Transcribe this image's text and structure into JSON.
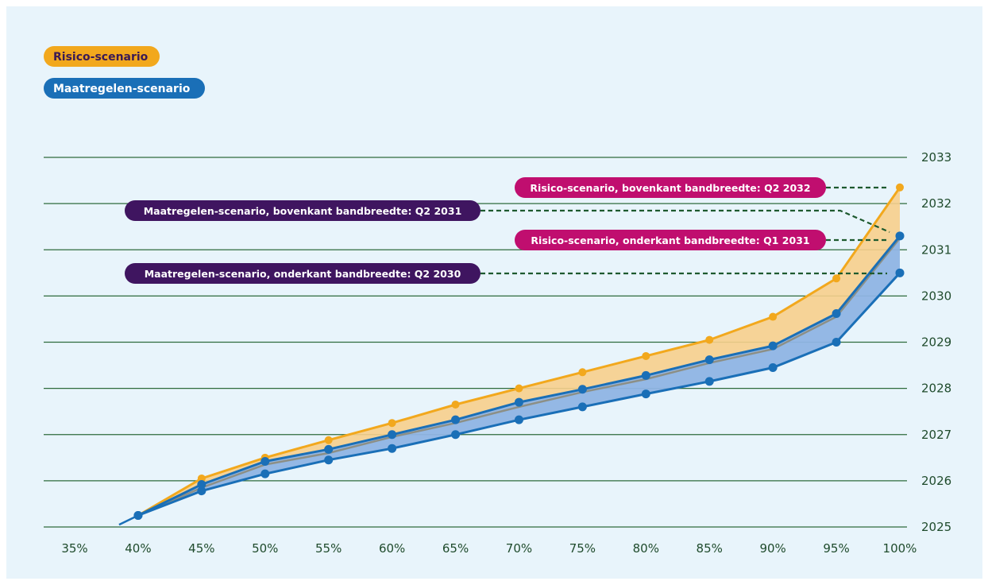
{
  "legend": {
    "risk_label": "Risico-scenario",
    "measures_label": "Maatregelen-scenario"
  },
  "colors": {
    "panel_background": "#e8f4fb",
    "risk_line": "#f2a81d",
    "risk_fill": "#f7cf8c",
    "measures_line": "#1a6fb7",
    "measures_fill": "#8fb4e4",
    "gridline": "#2e6b3c",
    "axis_text": "#1f4b2c",
    "annotation_risk_bg": "#c00e6f",
    "annotation_measures_bg": "#3f1560",
    "leader_line": "#1e5a2f"
  },
  "chart_data": {
    "type": "area",
    "x_unit": "%",
    "xlim": [
      35,
      100
    ],
    "ylim": [
      2025,
      2033
    ],
    "x_ticks": [
      "35%",
      "40%",
      "45%",
      "50%",
      "55%",
      "60%",
      "65%",
      "70%",
      "75%",
      "80%",
      "85%",
      "90%",
      "95%",
      "100%"
    ],
    "y_ticks": [
      "2025",
      "2026",
      "2027",
      "2028",
      "2029",
      "2030",
      "2031",
      "2032",
      "2033"
    ],
    "grid": true,
    "legend_position": "top-left",
    "origin_point": {
      "x": 38.5,
      "y": 2025.05
    },
    "series": [
      {
        "name": "Risico-scenario",
        "band": "upper",
        "x": [
          40,
          45,
          50,
          55,
          60,
          65,
          70,
          75,
          80,
          85,
          90,
          95,
          100
        ],
        "y": [
          2025.25,
          2026.05,
          2026.5,
          2026.88,
          2027.25,
          2027.65,
          2028.0,
          2028.35,
          2028.7,
          2029.05,
          2029.55,
          2030.38,
          2032.35
        ]
      },
      {
        "name": "Risico-scenario",
        "band": "lower",
        "x": [
          40,
          45,
          50,
          55,
          60,
          65,
          70,
          75,
          80,
          85,
          90,
          95,
          100
        ],
        "y": [
          2025.25,
          2025.85,
          2026.35,
          2026.6,
          2026.95,
          2027.25,
          2027.6,
          2027.92,
          2028.2,
          2028.55,
          2028.85,
          2029.55,
          2031.25
        ]
      },
      {
        "name": "Maatregelen-scenario",
        "band": "upper",
        "x": [
          40,
          45,
          50,
          55,
          60,
          65,
          70,
          75,
          80,
          85,
          90,
          95,
          100
        ],
        "y": [
          2025.25,
          2025.92,
          2026.42,
          2026.68,
          2027.0,
          2027.32,
          2027.7,
          2027.98,
          2028.28,
          2028.62,
          2028.92,
          2029.62,
          2031.3
        ]
      },
      {
        "name": "Maatregelen-scenario",
        "band": "lower",
        "x": [
          40,
          45,
          50,
          55,
          60,
          65,
          70,
          75,
          80,
          85,
          90,
          95,
          100
        ],
        "y": [
          2025.25,
          2025.78,
          2026.15,
          2026.45,
          2026.7,
          2027.0,
          2027.32,
          2027.6,
          2027.88,
          2028.15,
          2028.45,
          2029.0,
          2030.5
        ]
      }
    ],
    "annotations": [
      {
        "id": "risk-upper",
        "text": "Risico-scenario, bovenkant bandbreedte: Q2 2032",
        "target_x": 100,
        "target_y": 2032.35,
        "scenario": "risk"
      },
      {
        "id": "measures-upper",
        "text": "Maatregelen-scenario, bovenkant bandbreedte: Q2 2031",
        "target_x": 100,
        "target_y": 2031.3,
        "scenario": "measures"
      },
      {
        "id": "risk-lower",
        "text": "Risico-scenario, onderkant bandbreedte: Q1 2031",
        "target_x": 100,
        "target_y": 2031.25,
        "scenario": "risk"
      },
      {
        "id": "measures-lower",
        "text": "Maatregelen-scenario, onderkant bandbreedte: Q2 2030",
        "target_x": 100,
        "target_y": 2030.5,
        "scenario": "measures"
      }
    ]
  }
}
